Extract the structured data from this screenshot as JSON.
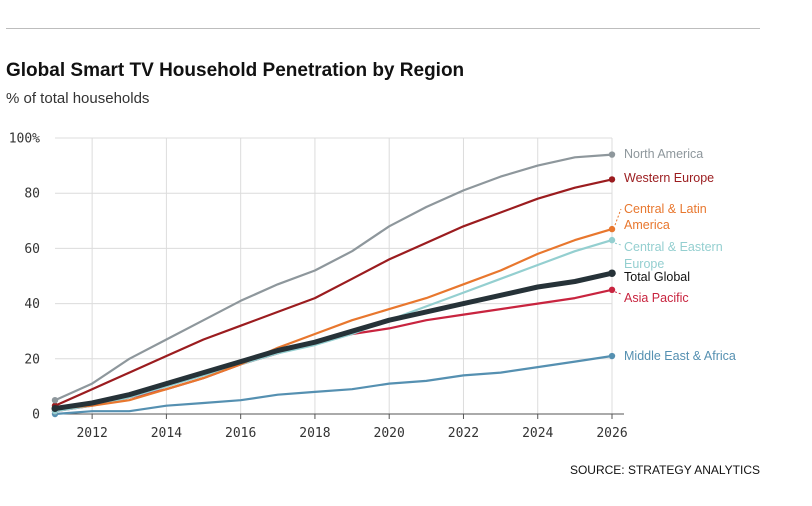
{
  "chart_data": {
    "type": "line",
    "title": "Global Smart TV Household Penetration by Region",
    "subtitle": "% of total households",
    "source": "SOURCE: STRATEGY ANALYTICS",
    "xlim": [
      2011,
      2026
    ],
    "ylim": [
      0,
      100
    ],
    "x": [
      2011,
      2012,
      2013,
      2014,
      2015,
      2016,
      2017,
      2018,
      2019,
      2020,
      2021,
      2022,
      2023,
      2024,
      2025,
      2026
    ],
    "x_ticks": [
      "2012",
      "2014",
      "2016",
      "2018",
      "2020",
      "2022",
      "2024",
      "2026"
    ],
    "y_ticks": [
      "0",
      "20",
      "40",
      "60",
      "80",
      "100%"
    ],
    "grid": true,
    "series": [
      {
        "name": "North America",
        "color": "#8e979c",
        "values": [
          5,
          11,
          20,
          27,
          34,
          41,
          47,
          52,
          59,
          68,
          75,
          81,
          86,
          90,
          93,
          94
        ]
      },
      {
        "name": "Western Europe",
        "color": "#9b1c1f",
        "values": [
          3,
          9,
          15,
          21,
          27,
          32,
          37,
          42,
          49,
          56,
          62,
          68,
          73,
          78,
          82,
          85
        ]
      },
      {
        "name": "Central & Latin America",
        "label_lines": [
          "Central & Latin",
          "America"
        ],
        "color": "#e8772e",
        "values": [
          2,
          3,
          5,
          9,
          13,
          18,
          24,
          29,
          34,
          38,
          42,
          47,
          52,
          58,
          63,
          67
        ]
      },
      {
        "name": "Central & Eastern Europe",
        "label_lines": [
          "Central & Eastern",
          "Europe"
        ],
        "color": "#94cfd0",
        "values": [
          1,
          3,
          6,
          10,
          14,
          18,
          22,
          25,
          29,
          34,
          39,
          44,
          49,
          54,
          59,
          63
        ]
      },
      {
        "name": "Total Global",
        "color": "#263238",
        "values": [
          2,
          4,
          7,
          11,
          15,
          19,
          23,
          26,
          30,
          34,
          37,
          40,
          43,
          46,
          48,
          51
        ]
      },
      {
        "name": "Asia Pacific",
        "color": "#c8243f",
        "values": [
          1,
          3,
          6,
          9,
          13,
          18,
          22,
          26,
          29,
          31,
          34,
          36,
          38,
          40,
          42,
          45
        ]
      },
      {
        "name": "Middle East & Africa",
        "color": "#5590b1",
        "values": [
          0,
          1,
          1,
          3,
          4,
          5,
          7,
          8,
          9,
          11,
          12,
          14,
          15,
          17,
          19,
          21
        ]
      }
    ]
  }
}
